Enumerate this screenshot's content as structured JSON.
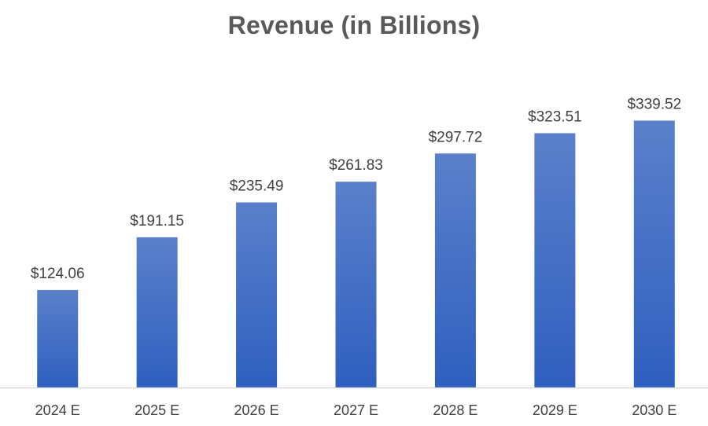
{
  "chart_data": {
    "type": "bar",
    "title": "Revenue (in Billions)",
    "categories": [
      "2024 E",
      "2025 E",
      "2026 E",
      "2027 E",
      "2028 E",
      "2029 E",
      "2030 E"
    ],
    "values": [
      124.06,
      191.15,
      235.49,
      261.83,
      297.72,
      323.51,
      339.52
    ],
    "data_labels": [
      "$124.06",
      "$191.15",
      "$235.49",
      "$261.83",
      "$297.72",
      "$323.51",
      "$339.52"
    ],
    "xlabel": "",
    "ylabel": "",
    "ylim": [
      0,
      380
    ],
    "grid": false,
    "legend": "none",
    "colors": {
      "bar_top": "#5b80cb",
      "bar_bottom": "#2f5fbf",
      "axis": "#d9d9d9",
      "title": "#595959",
      "label": "#404040"
    }
  }
}
